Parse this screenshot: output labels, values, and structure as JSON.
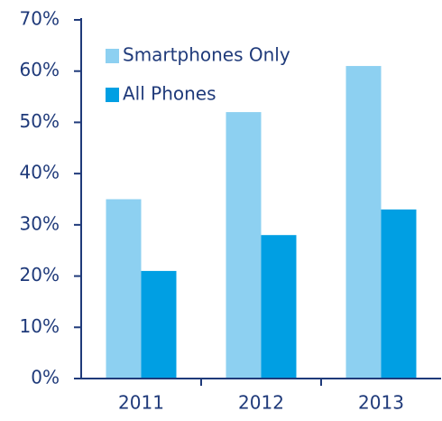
{
  "chart_data": {
    "type": "bar",
    "categories": [
      "2011",
      "2012",
      "2013"
    ],
    "series": [
      {
        "name": "Smartphones Only",
        "color": "#8dd0f1",
        "values": [
          35,
          52,
          61
        ]
      },
      {
        "name": "All Phones",
        "color": "#009fe3",
        "values": [
          21,
          28,
          33
        ]
      }
    ],
    "ylim": [
      0,
      70
    ],
    "yticks": [
      {
        "value": 0,
        "label": "0%"
      },
      {
        "value": 10,
        "label": "10%"
      },
      {
        "value": 20,
        "label": "20%"
      },
      {
        "value": 30,
        "label": "30%"
      },
      {
        "value": 40,
        "label": "40%"
      },
      {
        "value": 50,
        "label": "50%"
      },
      {
        "value": 60,
        "label": "60%"
      },
      {
        "value": 70,
        "label": "70%"
      }
    ],
    "legend": "top-left",
    "grid": false
  }
}
